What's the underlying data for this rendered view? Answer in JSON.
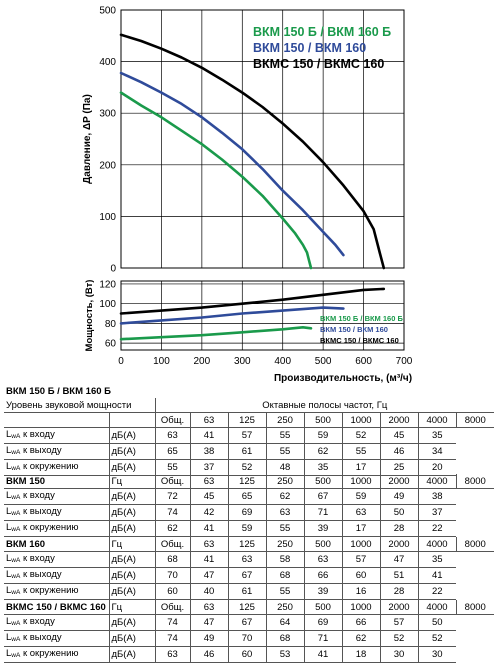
{
  "chart_data": [
    {
      "type": "line",
      "title": "",
      "xlabel": "",
      "ylabel": "Давление, ΔP (Па)",
      "xlim": [
        0,
        700
      ],
      "ylim": [
        0,
        500
      ],
      "x_ticks": [
        0,
        100,
        200,
        300,
        400,
        500,
        600,
        700
      ],
      "y_ticks": [
        "0",
        "100",
        "200",
        "300",
        "400",
        "500"
      ],
      "grid": true,
      "legend_position": "top-right",
      "series": [
        {
          "name": "ВКМ 150 Б / ВКМ 160 Б",
          "color": "#1a9a4b",
          "x": [
            0,
            50,
            100,
            150,
            200,
            250,
            300,
            350,
            400,
            430,
            450,
            460,
            465,
            470
          ],
          "y": [
            340,
            315,
            292,
            266,
            240,
            210,
            177,
            140,
            96,
            68,
            45,
            30,
            15,
            0
          ]
        },
        {
          "name": "ВКМ 150 / ВКМ 160",
          "color": "#2f4b9a",
          "x": [
            0,
            50,
            100,
            150,
            200,
            250,
            300,
            350,
            400,
            450,
            500,
            530,
            550
          ],
          "y": [
            378,
            360,
            340,
            318,
            292,
            262,
            230,
            192,
            150,
            112,
            70,
            45,
            25
          ]
        },
        {
          "name": "ВКМС 150 / ВКМС 160",
          "color": "#000000",
          "x": [
            0,
            50,
            100,
            150,
            200,
            250,
            300,
            350,
            400,
            450,
            500,
            550,
            600,
            625,
            640,
            650
          ],
          "y": [
            452,
            440,
            425,
            408,
            388,
            365,
            340,
            312,
            280,
            245,
            205,
            160,
            110,
            75,
            30,
            0
          ]
        }
      ]
    },
    {
      "type": "line",
      "title": "",
      "xlabel": "Производительность, (м³/ч)",
      "ylabel": "Мощность, (Вт)",
      "xlim": [
        0,
        700
      ],
      "ylim": [
        53,
        123
      ],
      "x_ticks": [
        0,
        100,
        200,
        300,
        400,
        500,
        600,
        700
      ],
      "y_ticks": [
        "60",
        "80",
        "100",
        "120"
      ],
      "grid": true,
      "legend_position": "bottom-right",
      "series": [
        {
          "name": "ВКМ 150 Б / ВКМ 160 Б",
          "color": "#1a9a4b",
          "x": [
            0,
            100,
            200,
            300,
            400,
            450,
            470
          ],
          "y": [
            64,
            66,
            68,
            71,
            74,
            76,
            75
          ]
        },
        {
          "name": "ВКМ 150 / ВКМ 160",
          "color": "#2f4b9a",
          "x": [
            0,
            100,
            200,
            300,
            400,
            500,
            550
          ],
          "y": [
            80,
            83,
            86,
            90,
            93,
            96,
            95
          ]
        },
        {
          "name": "ВКМС 150 / ВКМС 160",
          "color": "#000000",
          "x": [
            0,
            100,
            200,
            300,
            400,
            500,
            600,
            650
          ],
          "y": [
            90,
            93,
            96,
            100,
            104,
            109,
            114,
            115
          ]
        }
      ]
    }
  ],
  "tables": {
    "vkm150b": {
      "title": "ВКМ 150 Б / ВКМ 160 Б",
      "subtitle": "Уровень звуковой мощности",
      "bands_caption": "Октавные полосы частот, Гц",
      "unit_header": "",
      "total": "Общ.",
      "bands": [
        "63",
        "125",
        "250",
        "500",
        "1000",
        "2000",
        "4000",
        "8000"
      ],
      "rows": [
        {
          "label": "к входу",
          "unit": "дБ(A)",
          "values": [
            "63",
            "41",
            "57",
            "55",
            "59",
            "52",
            "45",
            "35"
          ]
        },
        {
          "label": "к выходу",
          "unit": "дБ(A)",
          "values": [
            "65",
            "38",
            "61",
            "55",
            "62",
            "55",
            "46",
            "34"
          ]
        },
        {
          "label": "к окружению",
          "unit": "дБ(A)",
          "values": [
            "55",
            "37",
            "52",
            "48",
            "35",
            "17",
            "25",
            "20"
          ]
        }
      ]
    },
    "vkm150": {
      "title": "ВКМ 150",
      "unit_header": "Гц",
      "total": "Общ.",
      "bands": [
        "63",
        "125",
        "250",
        "500",
        "1000",
        "2000",
        "4000",
        "8000"
      ],
      "rows": [
        {
          "label": "к входу",
          "unit": "дБ(A)",
          "values": [
            "72",
            "45",
            "65",
            "62",
            "67",
            "59",
            "49",
            "38"
          ]
        },
        {
          "label": "к выходу",
          "unit": "дБ(A)",
          "values": [
            "74",
            "42",
            "69",
            "63",
            "71",
            "63",
            "50",
            "37"
          ]
        },
        {
          "label": "к окружению",
          "unit": "дБ(A)",
          "values": [
            "62",
            "41",
            "59",
            "55",
            "39",
            "17",
            "28",
            "22"
          ]
        }
      ]
    },
    "vkm160": {
      "title": "ВКМ 160",
      "unit_header": "Гц",
      "total": "Общ.",
      "bands": [
        "63",
        "125",
        "250",
        "500",
        "1000",
        "2000",
        "4000",
        "8000"
      ],
      "rows": [
        {
          "label": "к входу",
          "unit": "дБ(A)",
          "values": [
            "68",
            "41",
            "63",
            "58",
            "63",
            "57",
            "47",
            "35"
          ]
        },
        {
          "label": "к выходу",
          "unit": "дБ(A)",
          "values": [
            "70",
            "47",
            "67",
            "68",
            "66",
            "60",
            "51",
            "41"
          ]
        },
        {
          "label": "к окружению",
          "unit": "дБ(A)",
          "values": [
            "60",
            "40",
            "61",
            "55",
            "39",
            "16",
            "28",
            "22"
          ]
        }
      ]
    },
    "vkms": {
      "title": "ВКМС 150 / ВКМС 160",
      "unit_header": "Гц",
      "total": "Общ.",
      "bands": [
        "63",
        "125",
        "250",
        "500",
        "1000",
        "2000",
        "4000",
        "8000"
      ],
      "rows": [
        {
          "label": "к входу",
          "unit": "дБ(A)",
          "values": [
            "74",
            "47",
            "67",
            "64",
            "69",
            "66",
            "57",
            "50"
          ]
        },
        {
          "label": "к выходу",
          "unit": "дБ(A)",
          "values": [
            "74",
            "49",
            "70",
            "68",
            "71",
            "62",
            "52",
            "52"
          ]
        },
        {
          "label": "к окружению",
          "unit": "дБ(A)",
          "values": [
            "63",
            "46",
            "60",
            "53",
            "41",
            "18",
            "30",
            "30"
          ]
        }
      ]
    }
  },
  "sound_power_symbol": {
    "L": "L",
    "sub": "wA"
  }
}
